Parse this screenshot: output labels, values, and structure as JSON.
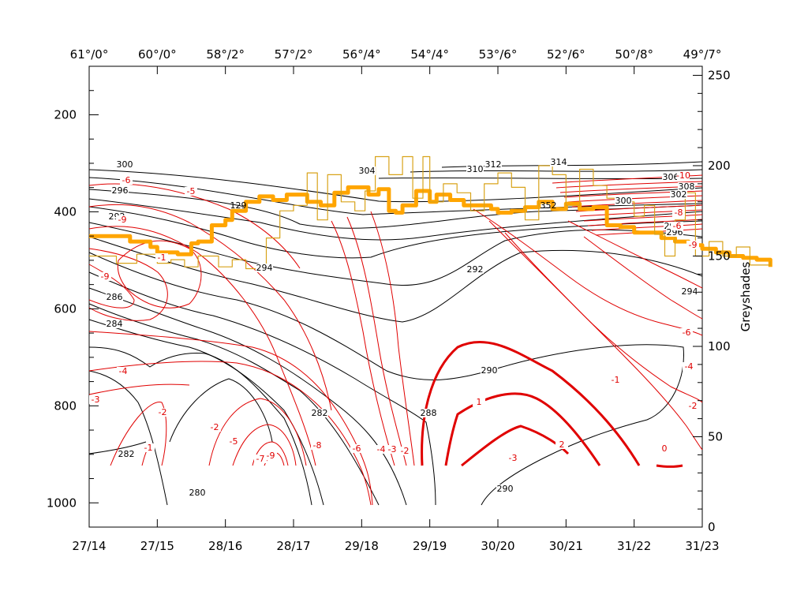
{
  "chart_data": {
    "type": "line",
    "title": "",
    "ylabel_right": "Greyshades",
    "left_axis": {
      "ylim": [
        1050,
        100
      ],
      "ticks": [
        200,
        400,
        600,
        800,
        1000
      ]
    },
    "right_axis": {
      "ylim": [
        0,
        255
      ],
      "ticks": [
        0,
        50,
        100,
        150,
        200,
        250
      ]
    },
    "bottom_ticks": [
      "27/14",
      "27/15",
      "28/16",
      "28/17",
      "29/18",
      "29/19",
      "30/20",
      "30/21",
      "31/22",
      "31/23"
    ],
    "top_ticks": [
      "61°/0°",
      "60°/0°",
      "58°/2°",
      "57°/2°",
      "56°/4°",
      "54°/4°",
      "53°/6°",
      "52°/6°",
      "50°/8°",
      "49°/7°"
    ],
    "black_contour_labels": [
      "300",
      "296",
      "292",
      "294",
      "286",
      "284",
      "282",
      "280",
      "282",
      "288",
      "290",
      "290",
      "292",
      "294",
      "300",
      "304",
      "310",
      "312",
      "314",
      "306",
      "308",
      "302",
      "298",
      "296"
    ],
    "red_contour_labels": [
      "-6",
      "-5",
      "-1",
      "-9",
      "-9",
      "-4",
      "-3",
      "-2",
      "-1",
      "-2",
      "-5",
      "-7",
      "-9",
      "-8",
      "-6",
      "-4",
      "-3",
      "-2",
      "1",
      "-3",
      "2",
      "0",
      "-1",
      "-2",
      "-4",
      "-6",
      "-6",
      "-8",
      "-10",
      "-9"
    ],
    "small_labels": [
      "129",
      "352"
    ],
    "series": [
      {
        "name": "greyshade (thick)",
        "color": "#ffa500",
        "axis": "right",
        "x": [
          0,
          0.3,
          0.6,
          0.9,
          1.0,
          1.3,
          1.5,
          1.6,
          1.8,
          2.0,
          2.1,
          2.3,
          2.5,
          2.7,
          2.9,
          3.0,
          3.2,
          3.4,
          3.6,
          3.8,
          4.0,
          4.1,
          4.25,
          4.4,
          4.5,
          4.6,
          4.8,
          5.0,
          5.1,
          5.3,
          5.5,
          5.7,
          5.9,
          6.0,
          6.2,
          6.4,
          6.6,
          6.8,
          7.0,
          7.2,
          7.4,
          7.6,
          7.8,
          8.0,
          8.2,
          8.4,
          8.6,
          8.8,
          9.0,
          9.2,
          9.4,
          9.6,
          9.8,
          10.0
        ],
        "values": [
          161,
          161,
          158,
          155,
          152,
          151,
          157,
          158,
          167,
          170,
          175,
          180,
          183,
          181,
          184,
          184,
          180,
          178,
          185,
          188,
          188,
          184,
          187,
          175,
          174,
          178,
          186,
          180,
          184,
          181,
          178,
          178,
          176,
          174,
          175,
          177,
          180,
          176,
          179,
          176,
          177,
          167,
          166,
          163,
          163,
          160,
          158,
          156,
          154,
          152,
          150,
          149,
          148,
          144
        ]
      },
      {
        "name": "greyshade (thin)",
        "color": "#d8a31a",
        "axis": "right",
        "x": [
          0,
          0.4,
          0.7,
          1.0,
          1.2,
          1.4,
          1.6,
          1.9,
          2.1,
          2.3,
          2.6,
          2.8,
          3.0,
          3.2,
          3.35,
          3.5,
          3.7,
          3.9,
          4.05,
          4.2,
          4.4,
          4.6,
          4.75,
          4.9,
          5.0,
          5.2,
          5.4,
          5.6,
          5.8,
          6.0,
          6.2,
          6.4,
          6.6,
          6.8,
          7.0,
          7.2,
          7.4,
          7.6,
          7.8,
          8.0,
          8.15,
          8.3,
          8.45,
          8.6,
          8.75,
          8.9,
          9.1,
          9.3,
          9.5,
          9.7,
          10.0
        ],
        "values": [
          150,
          146,
          151,
          146,
          148,
          144,
          150,
          144,
          148,
          143,
          160,
          175,
          178,
          196,
          170,
          195,
          180,
          175,
          186,
          205,
          195,
          205,
          182,
          205,
          180,
          190,
          185,
          175,
          190,
          196,
          188,
          170,
          200,
          195,
          178,
          198,
          189,
          182,
          180,
          172,
          178,
          162,
          150,
          170,
          185,
          150,
          158,
          150,
          155,
          145,
          147
        ]
      }
    ]
  }
}
